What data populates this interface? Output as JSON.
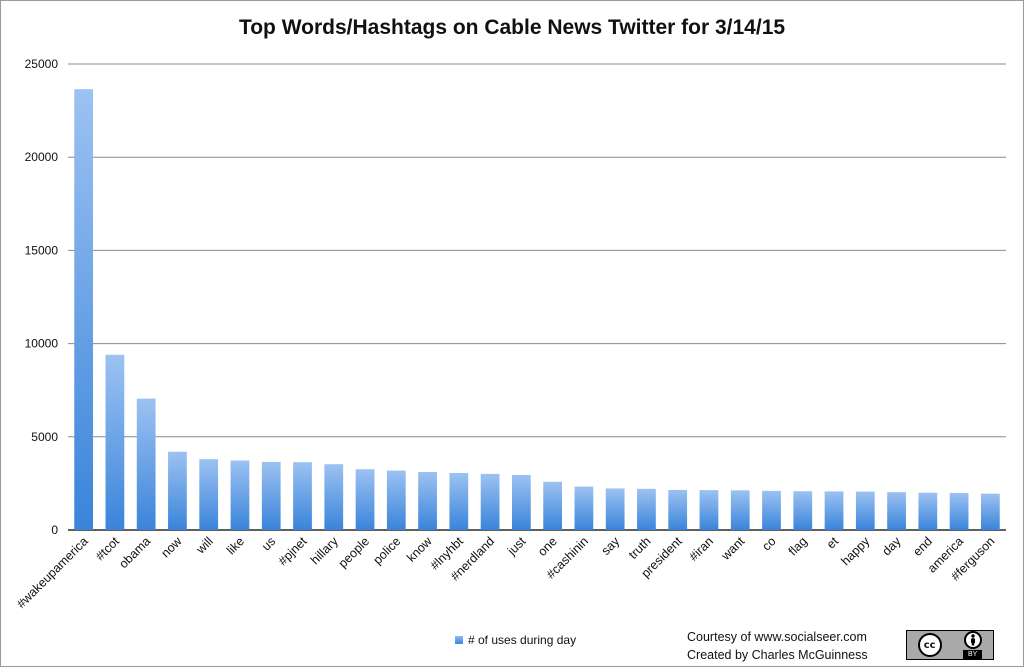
{
  "chart_data": {
    "type": "bar",
    "title": "Top Words/Hashtags on Cable News Twitter for 3/14/15",
    "categories": [
      "#wakeupamerica",
      "#tcot",
      "obama",
      "now",
      "will",
      "like",
      "us",
      "#pjnet",
      "hillary",
      "people",
      "police",
      "know",
      "#lnyhbt",
      "#nerdland",
      "just",
      "one",
      "#cashinin",
      "say",
      "truth",
      "president",
      "#iran",
      "want",
      "co",
      "flag",
      "et",
      "happy",
      "day",
      "end",
      "america",
      "#ferguson"
    ],
    "series": [
      {
        "name": "# of uses during day",
        "values": [
          23650,
          9400,
          7050,
          4200,
          3800,
          3730,
          3650,
          3640,
          3530,
          3260,
          3190,
          3110,
          3060,
          3010,
          2950,
          2590,
          2330,
          2230,
          2210,
          2150,
          2140,
          2130,
          2100,
          2080,
          2070,
          2060,
          2030,
          2000,
          1990,
          1950
        ]
      }
    ],
    "ylim": [
      0,
      25000
    ],
    "yticks": [
      0,
      5000,
      10000,
      15000,
      20000,
      25000
    ],
    "grid": true,
    "legend_position": "bottom",
    "colors": {
      "bar_top": "#9cc2f2",
      "bar_bottom": "#3a84da",
      "grid": "#8a8a8a"
    }
  },
  "credits": {
    "line1": "Courtesy of www.socialseer.com",
    "line2": "Created by Charles McGuinness"
  },
  "badge": {
    "cc": "cc",
    "by": "BY"
  }
}
